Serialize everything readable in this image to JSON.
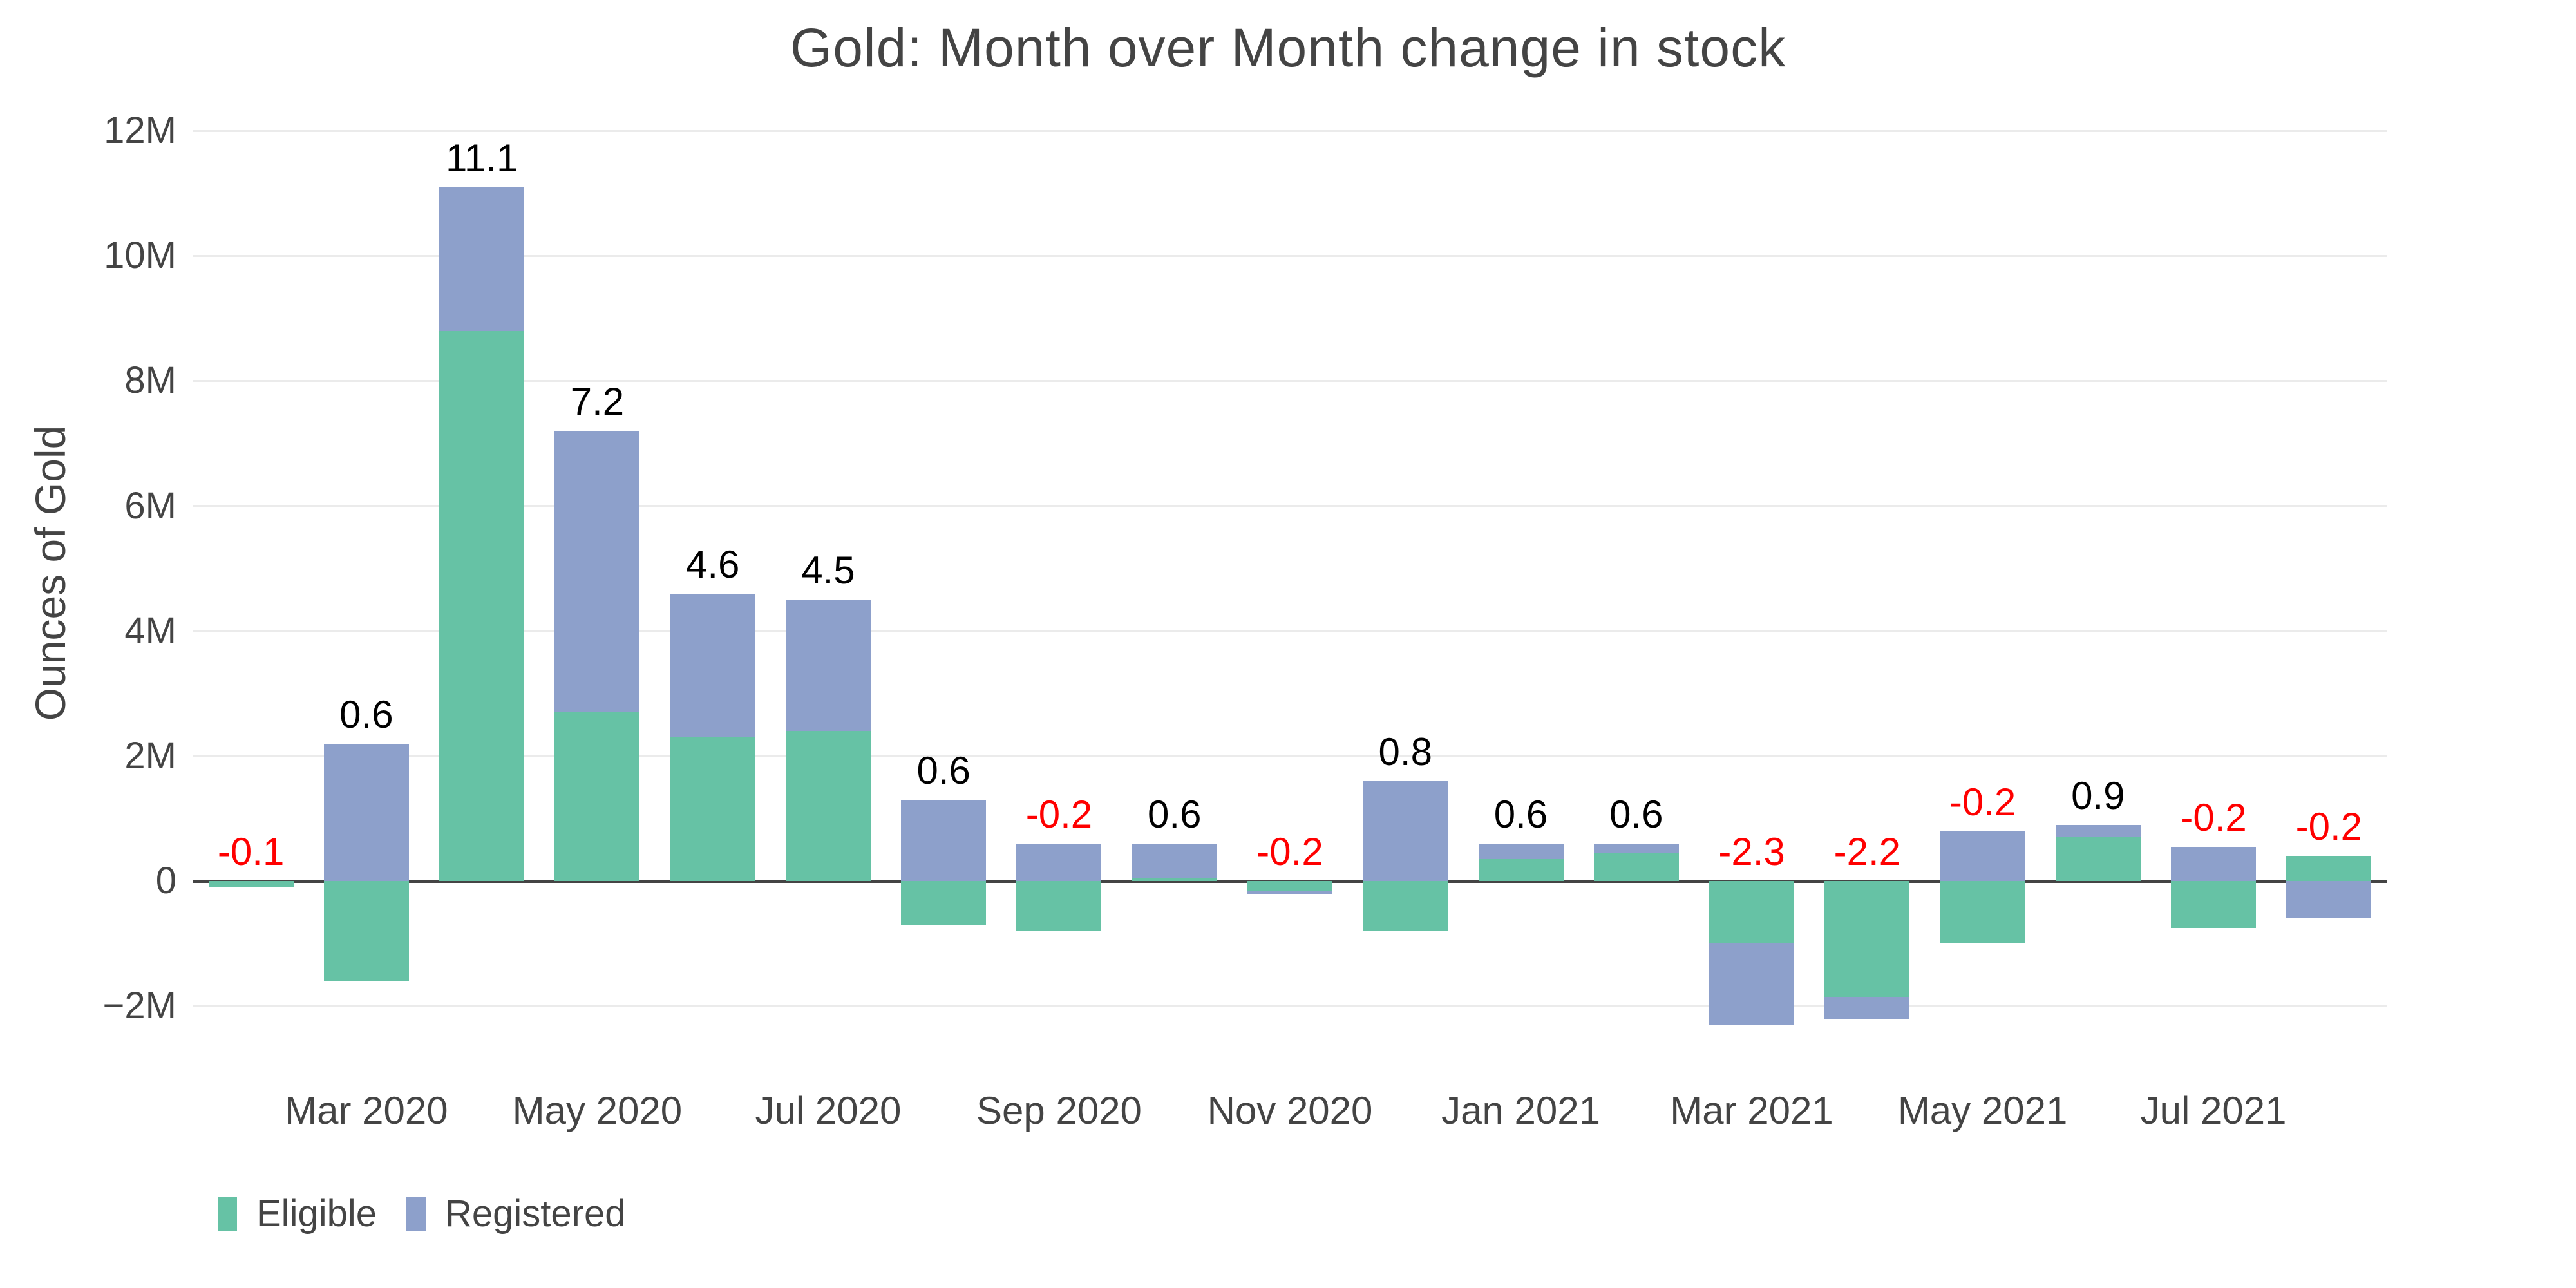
{
  "title": "Gold: Month over Month change in stock",
  "colors": {
    "eligible": "#66c2a5",
    "registered": "#8da0cb",
    "positive_label": "#000000",
    "negative_label": "#ff0000",
    "text": "#444444",
    "gridline": "#ebebeb",
    "zero_line": "#444444",
    "background": "#ffffff"
  },
  "legend": {
    "items": [
      {
        "label": "Eligible",
        "color": "#66c2a5"
      },
      {
        "label": "Registered",
        "color": "#8da0cb"
      }
    ]
  },
  "chart_data": {
    "type": "bar",
    "stacked": true,
    "barmode": "relative",
    "title": "Gold: Month over Month change in stock",
    "xlabel": "",
    "ylabel": "Ounces of Gold",
    "unit": "millions of ounces",
    "ylim": [
      -2.8,
      12.65
    ],
    "grid": true,
    "legend_position": "bottom-left",
    "categories": [
      "Feb 2020",
      "Mar 2020",
      "Apr 2020",
      "May 2020",
      "Jun 2020",
      "Jul 2020",
      "Aug 2020",
      "Sep 2020",
      "Oct 2020",
      "Nov 2020",
      "Dec 2020",
      "Jan 2021",
      "Feb 2021",
      "Mar 2021",
      "Apr 2021",
      "May 2021",
      "Jun 2021",
      "Jul 2021",
      "Aug 2021"
    ],
    "series": [
      {
        "name": "Eligible",
        "color": "#66c2a5",
        "values": [
          -0.1,
          -1.6,
          8.8,
          2.7,
          2.3,
          2.4,
          -0.7,
          -0.8,
          0.05,
          -0.15,
          -0.8,
          0.35,
          0.45,
          -1.0,
          -1.85,
          -1.0,
          0.7,
          -0.75,
          0.4
        ]
      },
      {
        "name": "Registered",
        "color": "#8da0cb",
        "values": [
          0,
          2.2,
          2.3,
          4.5,
          2.3,
          2.1,
          1.3,
          0.6,
          0.55,
          -0.05,
          1.6,
          0.25,
          0.15,
          -1.3,
          -0.35,
          0.8,
          0.2,
          0.55,
          -0.6
        ]
      }
    ],
    "total_labels": [
      "-0.1",
      "0.6",
      "11.1",
      "7.2",
      "4.6",
      "4.5",
      "0.6",
      "-0.2",
      "0.6",
      "-0.2",
      "0.8",
      "0.6",
      "0.6",
      "-2.3",
      "-2.2",
      "-0.2",
      "0.9",
      "-0.2",
      "-0.2"
    ],
    "y_ticks": {
      "values": [
        12,
        10,
        8,
        6,
        4,
        2,
        0,
        -2
      ],
      "labels": [
        "12M",
        "10M",
        "8M",
        "6M",
        "4M",
        "2M",
        "0",
        "−2M"
      ]
    },
    "x_ticks": {
      "band_indices": [
        1,
        3,
        5,
        7,
        9,
        11,
        13,
        15,
        17
      ],
      "labels": [
        "Mar 2020",
        "May 2020",
        "Jul 2020",
        "Sep 2020",
        "Nov 2020",
        "Jan 2021",
        "Mar 2021",
        "May 2021",
        "Jul 2021"
      ]
    }
  }
}
